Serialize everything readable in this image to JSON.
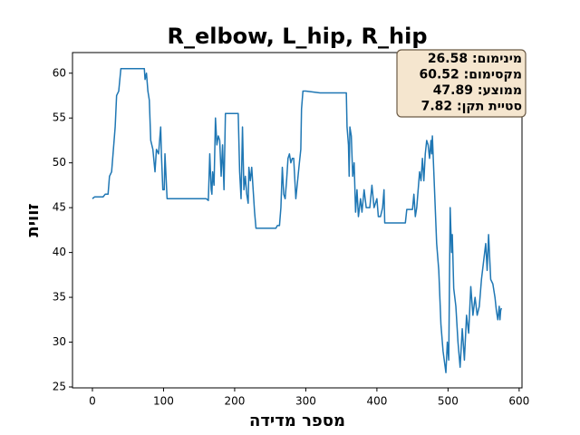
{
  "chart_data": {
    "type": "line",
    "title": "R_elbow, L_hip, R_hip",
    "xlabel": "מספר מדידה",
    "ylabel": "זווית",
    "annotation": [
      "מינימום: 26.58",
      "מקסימום: 60.52",
      "ממוצע: 47.89",
      "סטיית תקן: 7.82"
    ],
    "xlim": [
      -28,
      604
    ],
    "ylim": [
      24.9,
      62.3
    ],
    "xticks": [
      0,
      100,
      200,
      300,
      400,
      500,
      600
    ],
    "yticks": [
      25,
      30,
      35,
      40,
      45,
      50,
      55,
      60
    ],
    "series": [
      {
        "color": "#1f77b4",
        "x": [
          0,
          3,
          15,
          18,
          22,
          24,
          27,
          30,
          32,
          34,
          37,
          40,
          55,
          73,
          74,
          76,
          78,
          80,
          82,
          85,
          88,
          90,
          93,
          96,
          97,
          99,
          101,
          102,
          105,
          120,
          140,
          160,
          163,
          165,
          167,
          168,
          169,
          171,
          173,
          175,
          177,
          179,
          181,
          183,
          185,
          187,
          200,
          205,
          207,
          209,
          211,
          213,
          215,
          217,
          219,
          220,
          222,
          224,
          226,
          228,
          230,
          238,
          258,
          260,
          263,
          265,
          267,
          269,
          271,
          273,
          275,
          277,
          279,
          281,
          283,
          286,
          291,
          293,
          294,
          295,
          296,
          300,
          320,
          340,
          357,
          358,
          360,
          361,
          362,
          364,
          366,
          368,
          370,
          372,
          374,
          377,
          379,
          382,
          385,
          390,
          393,
          396,
          400,
          402,
          405,
          408,
          410,
          411,
          420,
          440,
          442,
          450,
          452,
          454,
          456,
          458,
          460,
          462,
          464,
          466,
          468,
          470,
          472,
          474,
          476,
          477,
          478,
          480,
          484,
          487,
          490,
          493,
          497,
          499,
          501,
          503,
          505,
          506,
          508,
          511,
          514,
          517,
          520,
          523,
          526,
          529,
          532,
          535,
          538,
          541,
          544,
          547,
          550,
          553,
          555,
          557,
          560,
          563,
          566,
          568,
          570,
          572,
          573,
          574,
          575
        ],
        "values": [
          46,
          46.2,
          46.2,
          46.5,
          46.5,
          48.5,
          49,
          52,
          54,
          57.5,
          58,
          60.5,
          60.5,
          60.5,
          59.3,
          60,
          58,
          57,
          52.5,
          51.5,
          49,
          51.5,
          51,
          54,
          51,
          47,
          47,
          51,
          46,
          46,
          46,
          46,
          45.8,
          51,
          47,
          46.5,
          49,
          47.5,
          55,
          52,
          53,
          52.5,
          48.5,
          52,
          47,
          55.5,
          55.5,
          55.5,
          49,
          46,
          54,
          47,
          48.5,
          46.5,
          45.5,
          49.5,
          48,
          49.5,
          47,
          44.5,
          42.7,
          42.7,
          42.7,
          43,
          43,
          45,
          49.5,
          46.5,
          46,
          48,
          50.5,
          51,
          50,
          50.5,
          50.5,
          46,
          50,
          51.5,
          56,
          57,
          58,
          58,
          57.8,
          57.8,
          57.8,
          54,
          52,
          48.5,
          54,
          53,
          48.5,
          50,
          44.5,
          47,
          44,
          46,
          44.5,
          47,
          45,
          45,
          47.5,
          45,
          46,
          44,
          44,
          45,
          47,
          43.3,
          43.3,
          43.3,
          44.8,
          44.8,
          46.5,
          44,
          45,
          47,
          49,
          48,
          50.5,
          48,
          51,
          52.5,
          52,
          50.5,
          52.5,
          51,
          53,
          49,
          41,
          38,
          32,
          29,
          26.6,
          30,
          28,
          45,
          40,
          42,
          36,
          34,
          30,
          27.2,
          31.5,
          28,
          33,
          31,
          36.2,
          33,
          35,
          33,
          34,
          37,
          39,
          41,
          38,
          42,
          37,
          36.5,
          35,
          33.5,
          32.5,
          34,
          32.5,
          33.5,
          33.8
        ]
      }
    ]
  }
}
